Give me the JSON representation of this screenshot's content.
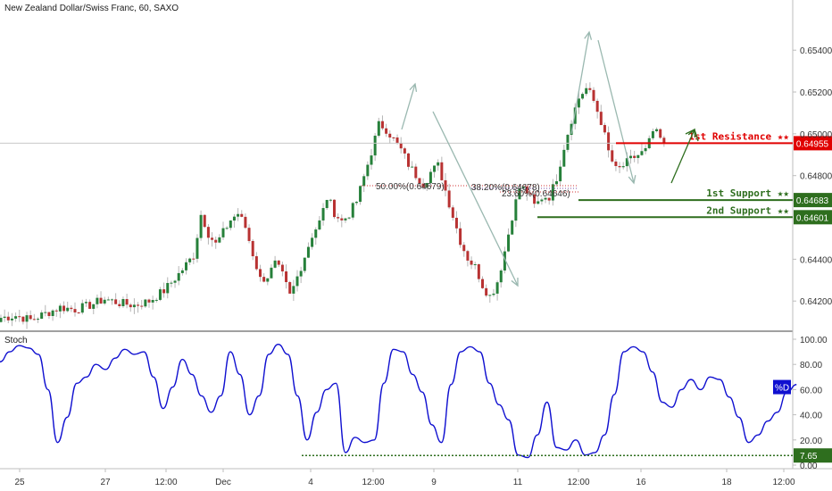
{
  "chart_data": [
    {
      "type": "candlestick",
      "title": "New Zealand Dollar/Swiss Franc, 60, SAXO",
      "x_tick_labels": [
        "25",
        "27",
        "12:00",
        "Dec",
        "4",
        "12:00",
        "9",
        "11",
        "12:00",
        "16",
        "18",
        "12:00"
      ],
      "ylim": [
        0.6406,
        0.6564
      ],
      "y_ticks": [
        "0.65400",
        "0.65200",
        "0.65000",
        "0.64800",
        "0.64400",
        "0.64200"
      ],
      "price_path": [
        [
          0,
          0.6412
        ],
        [
          2,
          0.6413
        ],
        [
          4,
          0.6411
        ],
        [
          6,
          0.6414
        ],
        [
          8,
          0.6417
        ],
        [
          10,
          0.6416
        ],
        [
          12,
          0.6418
        ],
        [
          14,
          0.6421
        ],
        [
          16,
          0.6419
        ],
        [
          18,
          0.6418
        ],
        [
          20,
          0.642
        ],
        [
          22,
          0.6425
        ],
        [
          24,
          0.6433
        ],
        [
          26,
          0.6442
        ],
        [
          27,
          0.6462
        ],
        [
          28,
          0.6452
        ],
        [
          29,
          0.6447
        ],
        [
          31,
          0.6459
        ],
        [
          32,
          0.6462
        ],
        [
          33,
          0.6455
        ],
        [
          34,
          0.6442
        ],
        [
          35,
          0.643
        ],
        [
          36,
          0.6432
        ],
        [
          37,
          0.6438
        ],
        [
          38,
          0.6432
        ],
        [
          39,
          0.6422
        ],
        [
          40,
          0.6432
        ],
        [
          41,
          0.6442
        ],
        [
          42,
          0.6452
        ],
        [
          43,
          0.6458
        ],
        [
          44,
          0.647
        ],
        [
          45,
          0.6462
        ],
        [
          46,
          0.6458
        ],
        [
          47,
          0.6462
        ],
        [
          48,
          0.6468
        ],
        [
          49,
          0.648
        ],
        [
          50,
          0.6492
        ],
        [
          51,
          0.6505
        ],
        [
          52,
          0.6502
        ],
        [
          53,
          0.6497
        ],
        [
          54,
          0.6492
        ],
        [
          55,
          0.6485
        ],
        [
          56,
          0.648
        ],
        [
          57,
          0.6476
        ],
        [
          58,
          0.6482
        ],
        [
          59,
          0.6485
        ],
        [
          60,
          0.6472
        ],
        [
          61,
          0.646
        ],
        [
          62,
          0.6448
        ],
        [
          63,
          0.644
        ],
        [
          64,
          0.6436
        ],
        [
          65,
          0.6427
        ],
        [
          66,
          0.6422
        ],
        [
          67,
          0.643
        ],
        [
          68,
          0.6445
        ],
        [
          69,
          0.6462
        ],
        [
          70,
          0.6475
        ],
        [
          71,
          0.6472
        ],
        [
          72,
          0.6465
        ],
        [
          73,
          0.647
        ],
        [
          74,
          0.647
        ],
        [
          75,
          0.648
        ],
        [
          76,
          0.6495
        ],
        [
          77,
          0.6508
        ],
        [
          78,
          0.6518
        ],
        [
          79,
          0.6522
        ],
        [
          80,
          0.6515
        ],
        [
          81,
          0.6505
        ],
        [
          82,
          0.649
        ],
        [
          83,
          0.6482
        ],
        [
          84,
          0.6485
        ],
        [
          85,
          0.6488
        ],
        [
          86,
          0.649
        ],
        [
          87,
          0.6492
        ],
        [
          88,
          0.6502
        ],
        [
          89,
          0.6497
        ],
        [
          89.4,
          0.64955
        ]
      ],
      "levels": [
        {
          "name": "1st Resistance ★★",
          "value": "0.64955",
          "price": 0.64955,
          "color": "#e00000"
        },
        {
          "name": "1st Support ★★",
          "value": "0.64683",
          "price": 0.64683,
          "color": "#2e6e1e"
        },
        {
          "name": "2nd Support ★★",
          "value": "0.64601",
          "price": 0.64601,
          "color": "#2e6e1e"
        }
      ],
      "fib_labels": {
        "fib_50": "50.00%(0.64679)",
        "fib_382": "38.20%(0.64678)",
        "fib_236": "23.60%(0.64646)"
      },
      "colors": {
        "up": "#26803a",
        "down": "#b83232",
        "wick": "#b5b5b5",
        "current_price": "#d13333"
      }
    },
    {
      "type": "line",
      "title": "Stoch",
      "ylim": [
        0,
        100
      ],
      "y_ticks": [
        "100.00",
        "80.00",
        "60.00",
        "40.00",
        "20.00",
        "0.00"
      ],
      "current_label": "%D",
      "threshold_value": "7.65",
      "threshold": 7.65,
      "color": "#1010d0",
      "values": [
        [
          0,
          82
        ],
        [
          1,
          90
        ],
        [
          2,
          95
        ],
        [
          3,
          93
        ],
        [
          4,
          88
        ],
        [
          5,
          60
        ],
        [
          6,
          18
        ],
        [
          7,
          38
        ],
        [
          8,
          65
        ],
        [
          9,
          70
        ],
        [
          10,
          80
        ],
        [
          11,
          76
        ],
        [
          12,
          85
        ],
        [
          13,
          92
        ],
        [
          14,
          88
        ],
        [
          15,
          90
        ],
        [
          16,
          70
        ],
        [
          17,
          45
        ],
        [
          18,
          62
        ],
        [
          19,
          84
        ],
        [
          20,
          72
        ],
        [
          21,
          55
        ],
        [
          22,
          42
        ],
        [
          23,
          55
        ],
        [
          24,
          90
        ],
        [
          25,
          72
        ],
        [
          26,
          40
        ],
        [
          27,
          55
        ],
        [
          28,
          88
        ],
        [
          29,
          96
        ],
        [
          30,
          88
        ],
        [
          31,
          55
        ],
        [
          32,
          20
        ],
        [
          33,
          42
        ],
        [
          34,
          60
        ],
        [
          35,
          65
        ],
        [
          36,
          10
        ],
        [
          37,
          22
        ],
        [
          38,
          18
        ],
        [
          39,
          20
        ],
        [
          40,
          65
        ],
        [
          41,
          92
        ],
        [
          42,
          90
        ],
        [
          43,
          72
        ],
        [
          44,
          58
        ],
        [
          45,
          32
        ],
        [
          46,
          18
        ],
        [
          47,
          64
        ],
        [
          48,
          90
        ],
        [
          49,
          94
        ],
        [
          50,
          90
        ],
        [
          51,
          65
        ],
        [
          52,
          48
        ],
        [
          53,
          36
        ],
        [
          54,
          8
        ],
        [
          55,
          6
        ],
        [
          56,
          24
        ],
        [
          57,
          50
        ],
        [
          58,
          14
        ],
        [
          59,
          12
        ],
        [
          60,
          20
        ],
        [
          61,
          8
        ],
        [
          62,
          10
        ],
        [
          63,
          24
        ],
        [
          64,
          56
        ],
        [
          65,
          90
        ],
        [
          66,
          94
        ],
        [
          67,
          90
        ],
        [
          68,
          74
        ],
        [
          69,
          50
        ],
        [
          70,
          46
        ],
        [
          71,
          60
        ],
        [
          72,
          68
        ],
        [
          73,
          60
        ],
        [
          74,
          70
        ],
        [
          75,
          68
        ],
        [
          76,
          54
        ],
        [
          77,
          38
        ],
        [
          78,
          18
        ],
        [
          79,
          24
        ],
        [
          80,
          35
        ],
        [
          81,
          42
        ],
        [
          82,
          58
        ],
        [
          83,
          64
        ]
      ]
    }
  ]
}
